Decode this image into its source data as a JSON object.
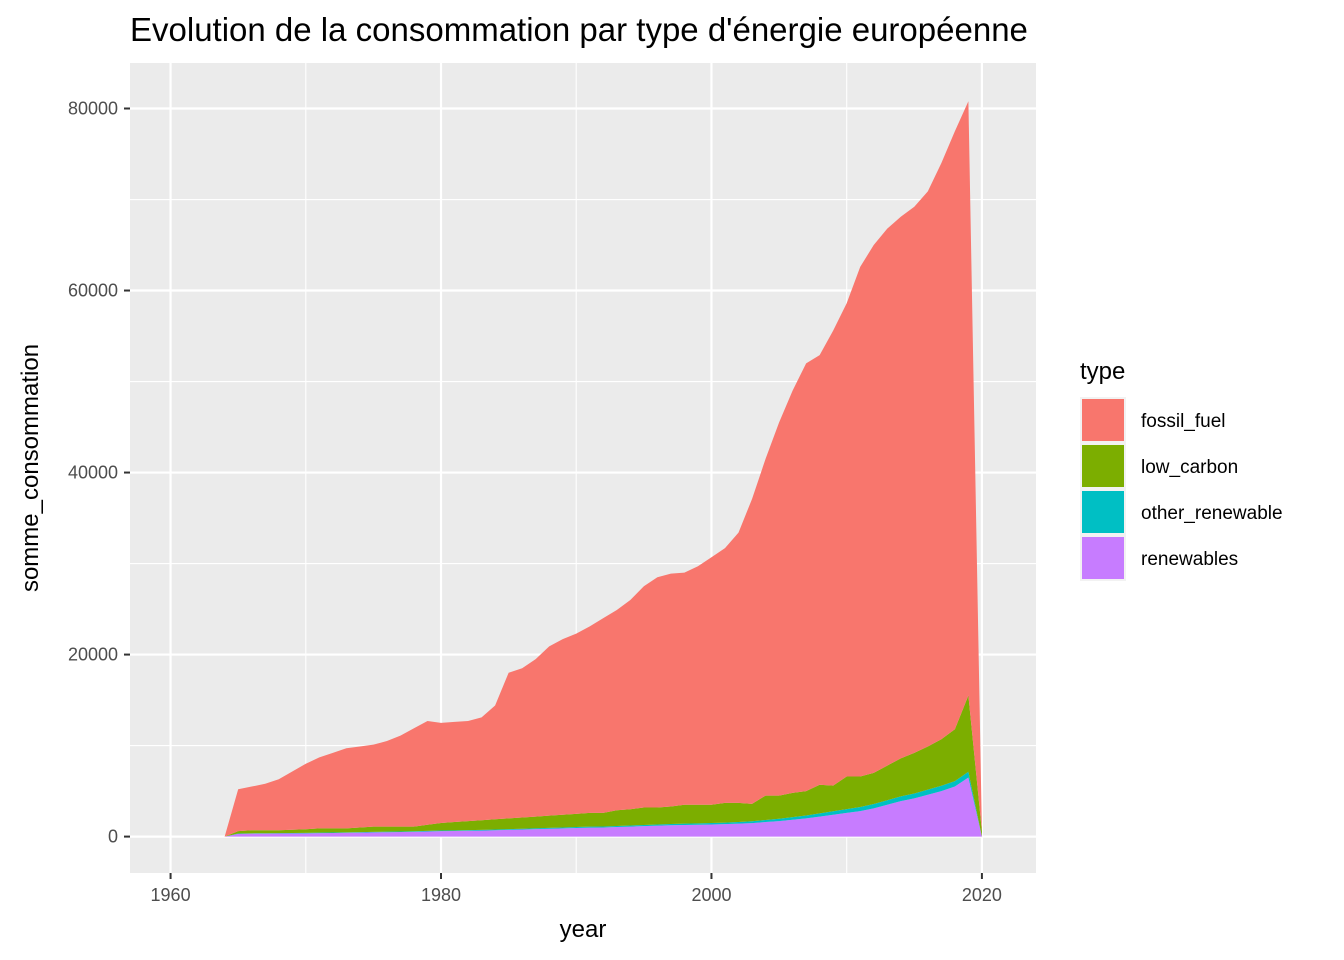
{
  "chart_data": {
    "type": "area",
    "stacked": true,
    "title": "Evolution de la consommation par type d'énergie européenne",
    "xlabel": "year",
    "ylabel": "somme_consommation",
    "xlim": [
      1957,
      2024
    ],
    "ylim": [
      -4000,
      85000
    ],
    "xticks": [
      1960,
      1980,
      2000,
      2020
    ],
    "yticks": [
      0,
      20000,
      40000,
      60000,
      80000
    ],
    "xtick_labels": [
      "1960",
      "1980",
      "2000",
      "2020"
    ],
    "ytick_labels": [
      "0",
      "20000",
      "40000",
      "60000",
      "80000"
    ],
    "grid": true,
    "legend": {
      "title": "type",
      "position": "right"
    },
    "x": [
      1964,
      1965,
      1966,
      1967,
      1968,
      1969,
      1970,
      1971,
      1972,
      1973,
      1974,
      1975,
      1976,
      1977,
      1978,
      1979,
      1980,
      1981,
      1982,
      1983,
      1984,
      1985,
      1986,
      1987,
      1988,
      1989,
      1990,
      1991,
      1992,
      1993,
      1994,
      1995,
      1996,
      1997,
      1998,
      1999,
      2000,
      2001,
      2002,
      2003,
      2004,
      2005,
      2006,
      2007,
      2008,
      2009,
      2010,
      2011,
      2012,
      2013,
      2014,
      2015,
      2016,
      2017,
      2018,
      2019,
      2020
    ],
    "series": [
      {
        "name": "renewables",
        "color": "#C77CFF",
        "values": [
          0,
          300,
          320,
          330,
          340,
          350,
          360,
          380,
          400,
          420,
          440,
          460,
          480,
          500,
          520,
          560,
          600,
          620,
          640,
          660,
          700,
          740,
          780,
          820,
          860,
          900,
          950,
          980,
          1000,
          1050,
          1100,
          1150,
          1200,
          1250,
          1280,
          1300,
          1330,
          1370,
          1420,
          1480,
          1600,
          1700,
          1850,
          2000,
          2200,
          2400,
          2600,
          2800,
          3100,
          3500,
          3900,
          4200,
          4600,
          5000,
          5500,
          6500,
          0
        ]
      },
      {
        "name": "other_renewable",
        "color": "#00BFC4",
        "values": [
          0,
          40,
          40,
          40,
          40,
          45,
          45,
          50,
          50,
          50,
          55,
          55,
          60,
          60,
          65,
          65,
          70,
          70,
          75,
          75,
          80,
          80,
          85,
          90,
          95,
          100,
          105,
          110,
          115,
          120,
          125,
          130,
          135,
          140,
          145,
          150,
          160,
          170,
          180,
          200,
          230,
          260,
          290,
          320,
          350,
          380,
          420,
          450,
          480,
          500,
          520,
          540,
          560,
          580,
          600,
          620,
          0
        ]
      },
      {
        "name": "low_carbon",
        "color": "#7CAE00",
        "values": [
          0,
          260,
          340,
          330,
          320,
          355,
          395,
          470,
          450,
          430,
          505,
          585,
          560,
          540,
          515,
          675,
          830,
          910,
          985,
          1065,
          1120,
          1180,
          1235,
          1290,
          1345,
          1400,
          1445,
          1510,
          1485,
          1730,
          1775,
          1920,
          1865,
          1910,
          2075,
          2050,
          2010,
          2160,
          2100,
          1920,
          2670,
          2540,
          2660,
          2680,
          3150,
          2820,
          3580,
          3350,
          3420,
          3800,
          4180,
          4460,
          4740,
          5120,
          5700,
          8380,
          600
        ]
      },
      {
        "name": "fossil_fuel",
        "color": "#F8766D",
        "values": [
          0,
          4600,
          4800,
          5100,
          5600,
          6400,
          7200,
          7800,
          8300,
          8800,
          8900,
          9000,
          9400,
          10000,
          10800,
          11400,
          11000,
          11000,
          11000,
          11300,
          12500,
          16000,
          16400,
          17300,
          18600,
          19300,
          19800,
          20500,
          21400,
          22000,
          23000,
          24300,
          25300,
          25600,
          25500,
          26200,
          27200,
          28000,
          29700,
          33500,
          37000,
          41000,
          44200,
          47000,
          47200,
          50000,
          52000,
          56000,
          58000,
          59000,
          59500,
          60000,
          61000,
          63300,
          65700,
          65300,
          0
        ]
      }
    ]
  }
}
